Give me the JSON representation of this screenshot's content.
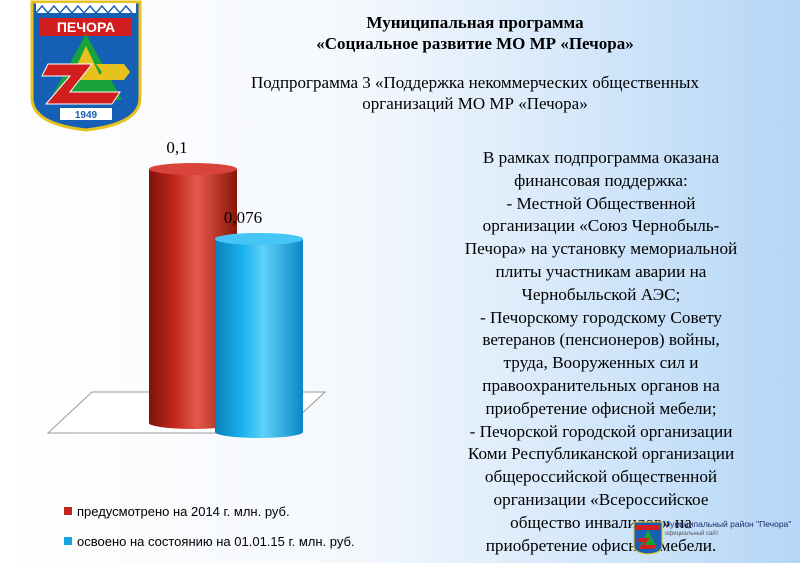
{
  "header": {
    "emblem_text": "ПЕЧОРА",
    "emblem_year": "1949",
    "title_line1": "Муниципальная программа",
    "title_line2": "«Социальное развитие МО МР «Печора»",
    "subtitle_line1": "Подпрограмма 3 «Поддержка некоммерческих общественных",
    "subtitle_line2": "организаций МО МР «Печора»"
  },
  "chart_data": {
    "type": "bar",
    "categories": [
      "предусмотрено на 2014 г. млн. руб.",
      "освоено на состоянию на 01.01.15 г. млн. руб."
    ],
    "series": [
      {
        "name": "предусмотрено на 2014 г. млн. руб.",
        "value": 0.1,
        "label": "0,1",
        "color": "#c0261b"
      },
      {
        "name": "освоено на состоянию на 01.01.15 г. млн. руб.",
        "value": 0.076,
        "label": "0,076",
        "color": "#14a4e2"
      }
    ],
    "ylim": [
      0,
      0.1
    ],
    "legend_position": "bottom-left"
  },
  "body_lines": [
    "В рамках подпрограмма оказана",
    "финансовая поддержка:",
    "- Местной Общественной",
    "организации «Союз Чернобыль-",
    "Печора» на установку мемориальной",
    "плиты участникам аварии на",
    "Чернобыльской АЭС;",
    "- Печорскому городскому Совету",
    "ветеранов (пенсионеров) войны,",
    "труда, Вооруженных сил и",
    "правоохранительных органов на",
    "приобретение офисной мебели;",
    "- Печорской городской организации",
    "Коми Республиканской организации",
    "общероссийской общественной",
    "организации «Всероссийское",
    "общество инвалидов» на",
    "приобретение офисной мебели."
  ],
  "footer": {
    "title": "Муниципальный район \"Печора\"",
    "subtitle": "официальный сайт"
  }
}
